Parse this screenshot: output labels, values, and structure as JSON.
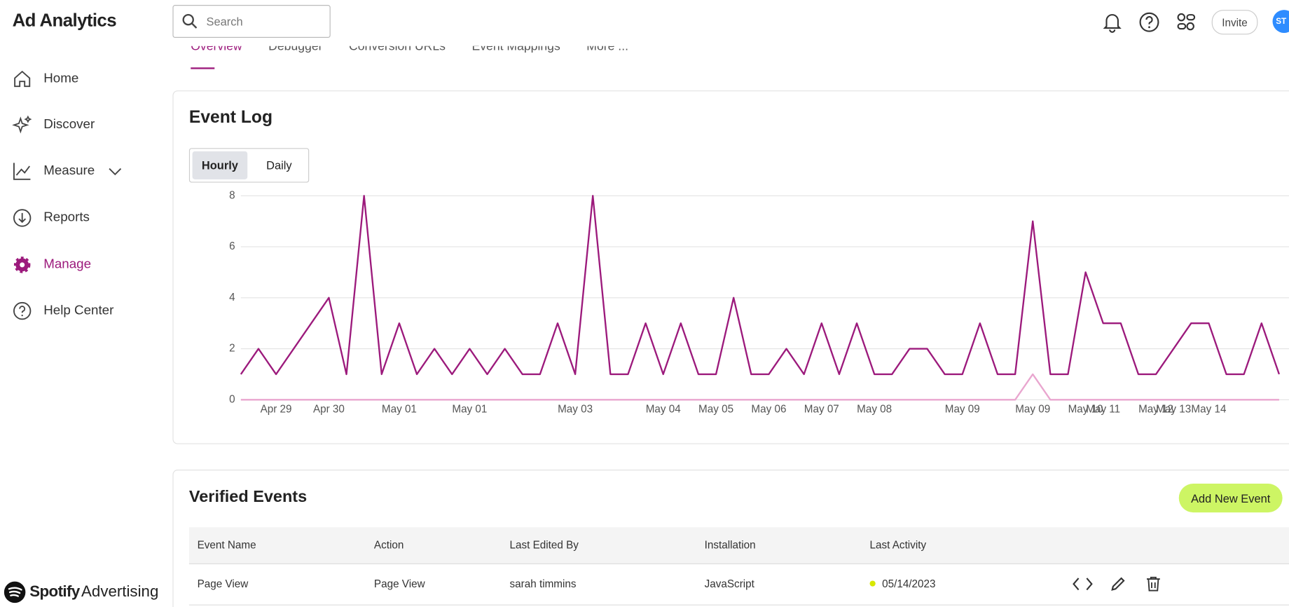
{
  "app": {
    "title": "Ad Analytics",
    "search_placeholder": "Search",
    "invite": "Invite",
    "avatar": "ST"
  },
  "nav": [
    "Home",
    "Discover",
    "Measure",
    "Reports",
    "Manage",
    "Help Center"
  ],
  "brand": {
    "name": "Spotify",
    "suffix": "Advertising"
  },
  "tabs": [
    "Overview",
    "Debugger",
    "Conversion URLs",
    "Event Mappings",
    "More ..."
  ],
  "event_log": {
    "title": "Event Log",
    "toggle": [
      "Hourly",
      "Daily"
    ]
  },
  "chart_data": {
    "type": "line",
    "categories": [
      null,
      null,
      "Apr 29",
      null,
      null,
      "Apr 30",
      null,
      null,
      null,
      "May 01",
      null,
      null,
      null,
      "May 01",
      null,
      null,
      null,
      null,
      null,
      "May 03",
      null,
      null,
      null,
      null,
      "May 04",
      null,
      null,
      "May 05",
      null,
      null,
      "May 06",
      null,
      null,
      "May 07",
      null,
      null,
      "May 08",
      null,
      null,
      null,
      null,
      "May 09",
      null,
      null,
      null,
      "May 09",
      null,
      null,
      "May 10",
      "May 11",
      null,
      null,
      "May 12",
      "May 13",
      null,
      "May 14",
      null,
      null,
      null,
      null
    ],
    "series": [
      {
        "color": "#9c1a7c",
        "values": [
          1,
          2,
          1,
          2,
          3,
          4,
          1,
          8,
          1,
          3,
          1,
          2,
          1,
          2,
          1,
          2,
          1,
          1,
          3,
          1,
          8,
          1,
          1,
          3,
          1,
          3,
          1,
          1,
          4,
          1,
          1,
          2,
          1,
          3,
          1,
          3,
          1,
          1,
          2,
          2,
          1,
          1,
          3,
          1,
          1,
          7,
          1,
          1,
          5,
          3,
          3,
          1,
          1,
          2,
          3,
          3,
          1,
          1,
          3,
          1
        ]
      },
      {
        "color": "#e9a6cf",
        "values": [
          0,
          0,
          0,
          0,
          0,
          0,
          0,
          0,
          0,
          0,
          0,
          0,
          0,
          0,
          0,
          0,
          0,
          0,
          0,
          0,
          0,
          0,
          0,
          0,
          0,
          0,
          0,
          0,
          0,
          0,
          0,
          0,
          0,
          0,
          0,
          0,
          0,
          0,
          0,
          0,
          0,
          0,
          0,
          0,
          0,
          1,
          0,
          0,
          0,
          0,
          0,
          0,
          0,
          0,
          0,
          0,
          0,
          0,
          0,
          0
        ]
      }
    ],
    "ylim": [
      0,
      8
    ],
    "yticks": [
      0,
      2,
      4,
      6,
      8
    ],
    "grid": true
  },
  "verified": {
    "title": "Verified Events",
    "button": "Add New Event",
    "columns": [
      "Event Name",
      "Action",
      "Last Edited By",
      "Installation",
      "Last Activity"
    ],
    "rows": [
      [
        "Page View",
        "Page View",
        "sarah timmins",
        "JavaScript",
        "05/14/2023"
      ]
    ]
  }
}
